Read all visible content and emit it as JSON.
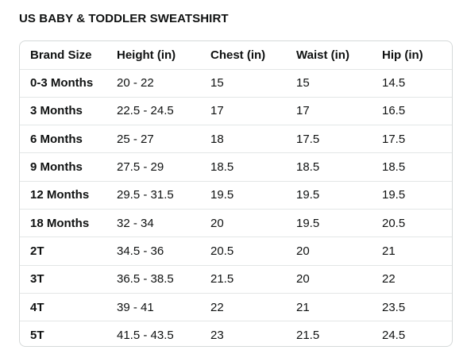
{
  "title": "US BABY & TODDLER SWEATSHIRT",
  "table": {
    "headers": [
      "Brand Size",
      "Height (in)",
      "Chest (in)",
      "Waist (in)",
      "Hip (in)"
    ],
    "rows": [
      [
        "0-3 Months",
        "20 - 22",
        "15",
        "15",
        "14.5"
      ],
      [
        "3 Months",
        "22.5 - 24.5",
        "17",
        "17",
        "16.5"
      ],
      [
        "6 Months",
        "25 - 27",
        "18",
        "17.5",
        "17.5"
      ],
      [
        "9 Months",
        "27.5 - 29",
        "18.5",
        "18.5",
        "18.5"
      ],
      [
        "12 Months",
        "29.5 - 31.5",
        "19.5",
        "19.5",
        "19.5"
      ],
      [
        "18 Months",
        "32 - 34",
        "20",
        "19.5",
        "20.5"
      ],
      [
        "2T",
        "34.5 - 36",
        "20.5",
        "20",
        "21"
      ],
      [
        "3T",
        "36.5 - 38.5",
        "21.5",
        "20",
        "22"
      ],
      [
        "4T",
        "39 - 41",
        "22",
        "21",
        "23.5"
      ],
      [
        "5T",
        "41.5 - 43.5",
        "23",
        "21.5",
        "24.5"
      ]
    ]
  }
}
